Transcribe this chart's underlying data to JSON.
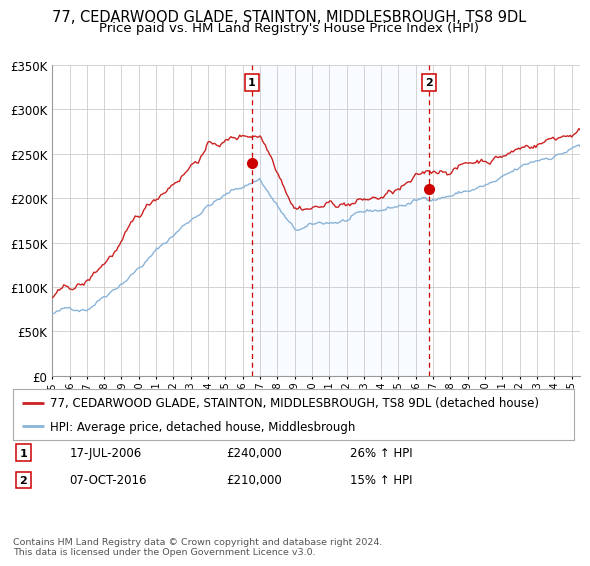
{
  "title": "77, CEDARWOOD GLADE, STAINTON, MIDDLESBROUGH, TS8 9DL",
  "subtitle": "Price paid vs. HM Land Registry's House Price Index (HPI)",
  "ylim": [
    0,
    350000
  ],
  "yticks": [
    0,
    50000,
    100000,
    150000,
    200000,
    250000,
    300000,
    350000
  ],
  "ytick_labels": [
    "£0",
    "£50K",
    "£100K",
    "£150K",
    "£200K",
    "£250K",
    "£300K",
    "£350K"
  ],
  "sale1_date_num": 2006.54,
  "sale1_price": 240000,
  "sale1_date_str": "17-JUL-2006",
  "sale1_pct": "26%",
  "sale2_date_num": 2016.76,
  "sale2_price": 210000,
  "sale2_date_str": "07-OCT-2016",
  "sale2_pct": "15%",
  "hpi_color": "#8ab4d8",
  "price_color": "#cc2222",
  "dot_color": "#cc0000",
  "shade_color": "#ddeeff",
  "vline_color": "#cc0000",
  "grid_color": "#cccccc",
  "bg_color": "#ffffff",
  "legend_line1": "77, CEDARWOOD GLADE, STAINTON, MIDDLESBROUGH, TS8 9DL (detached house)",
  "legend_line2": "HPI: Average price, detached house, Middlesbrough",
  "footer": "Contains HM Land Registry data © Crown copyright and database right 2024.\nThis data is licensed under the Open Government Licence v3.0.",
  "title_fontsize": 10.5,
  "subtitle_fontsize": 9.5,
  "tick_fontsize": 8.5,
  "legend_fontsize": 8.5,
  "xstart": 1995.0,
  "xend": 2025.5
}
